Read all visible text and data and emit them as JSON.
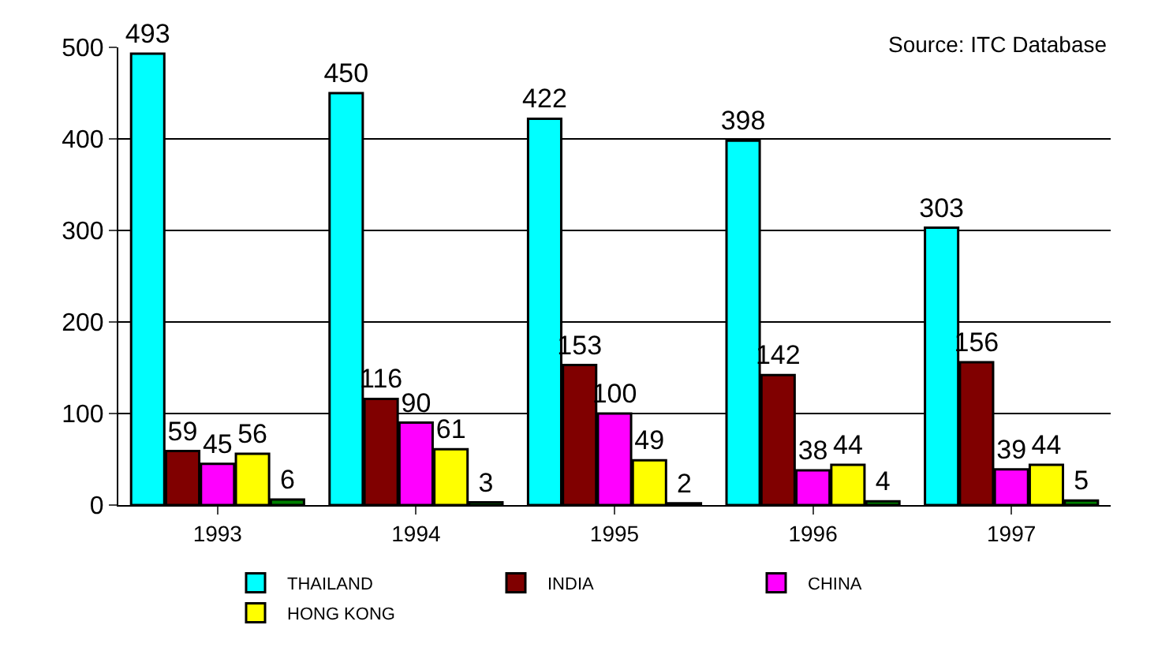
{
  "chart_data": {
    "type": "bar",
    "categories": [
      "1993",
      "1994",
      "1995",
      "1996",
      "1997"
    ],
    "series": [
      {
        "name": "THAILAND",
        "color": "#00ffff",
        "values": [
          493,
          450,
          422,
          398,
          303
        ]
      },
      {
        "name": "INDIA",
        "color": "#800000",
        "values": [
          59,
          116,
          153,
          142,
          156
        ]
      },
      {
        "name": "CHINA",
        "color": "#ff00ff",
        "values": [
          45,
          90,
          100,
          38,
          39
        ]
      },
      {
        "name": "HONG KONG",
        "color": "#ffff00",
        "values": [
          56,
          61,
          49,
          44,
          44
        ]
      },
      {
        "color": "#008000",
        "values": [
          6,
          3,
          2,
          4,
          5
        ]
      }
    ],
    "ylim": [
      0,
      500
    ],
    "yticks": [
      0,
      100,
      200,
      300,
      400,
      500
    ],
    "grid": "y",
    "legend": "bottom",
    "data_labels": true,
    "annotations": [
      "Source: ITC Database"
    ]
  }
}
